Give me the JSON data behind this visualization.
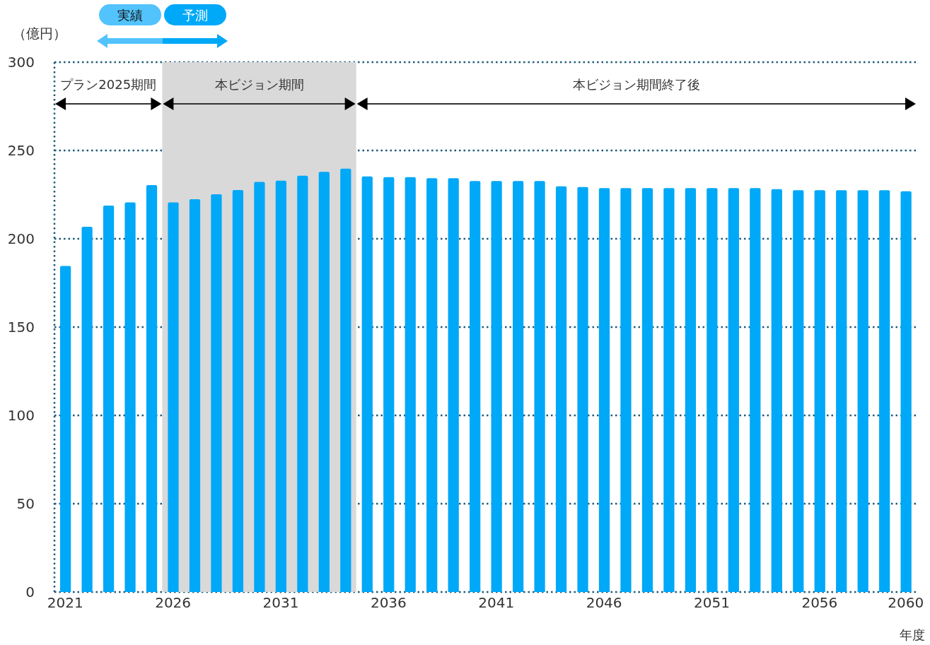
{
  "chart_data": {
    "type": "bar",
    "xlabel": "年度",
    "ylabel": "（億円）",
    "x": [
      2021,
      2022,
      2023,
      2024,
      2025,
      2026,
      2027,
      2028,
      2029,
      2030,
      2031,
      2032,
      2033,
      2034,
      2035,
      2036,
      2037,
      2038,
      2039,
      2040,
      2041,
      2042,
      2043,
      2044,
      2045,
      2046,
      2047,
      2048,
      2049,
      2050,
      2051,
      2052,
      2053,
      2054,
      2055,
      2056,
      2057,
      2058,
      2059,
      2060
    ],
    "values": [
      184.6,
      206.8,
      218.8,
      220.6,
      230.4,
      220.6,
      222.4,
      225.2,
      227.6,
      232.2,
      232.9,
      235.7,
      237.9,
      239.7,
      235.3,
      234.9,
      234.9,
      234.3,
      234.3,
      232.7,
      232.7,
      232.7,
      232.7,
      229.7,
      229.3,
      228.7,
      228.7,
      228.7,
      228.7,
      228.7,
      228.7,
      228.7,
      228.7,
      228.1,
      227.5,
      227.5,
      227.5,
      227.5,
      227.5,
      226.9
    ],
    "color": "#00a8f8",
    "xlim": [
      2020.5,
      2060.5
    ],
    "xticks": [
      2021,
      2026,
      2031,
      2036,
      2041,
      2046,
      2051,
      2056,
      2060
    ],
    "ylim": [
      0,
      300
    ],
    "yticks": [
      0,
      50,
      100,
      150,
      200,
      250,
      300
    ],
    "grid": "y",
    "bands": [
      {
        "axis": "x",
        "from": 2025.5,
        "to": 2034.5,
        "label": "本ビジョン期間",
        "color": "#d9d9d9"
      }
    ],
    "annotations": [
      "プラン2025期間",
      "本ビジョン期間終了後",
      "実績",
      "予測"
    ]
  }
}
